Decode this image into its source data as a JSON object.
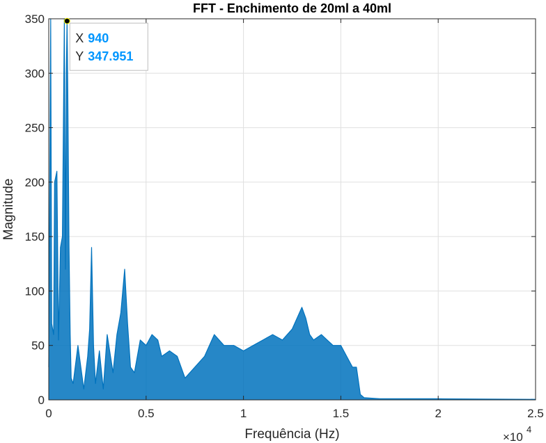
{
  "chart_data": {
    "type": "line",
    "title": "FFT - Enchimento de 20ml a 40ml",
    "xlabel": "Frequência (Hz)",
    "ylabel": "Magnitude",
    "xlim": [
      0,
      25000
    ],
    "ylim": [
      0,
      350
    ],
    "x_ticks": [
      0,
      5000,
      10000,
      15000,
      20000,
      25000
    ],
    "x_tick_labels": [
      "0",
      "0.5",
      "1",
      "1.5",
      "2",
      "2.5"
    ],
    "x_exponent_label": "×10",
    "x_exponent_power": "4",
    "y_ticks": [
      0,
      50,
      100,
      150,
      200,
      250,
      300,
      350
    ],
    "y_tick_labels": [
      "0",
      "50",
      "100",
      "150",
      "200",
      "250",
      "300",
      "350"
    ],
    "grid": true,
    "series": [
      {
        "color": "#0072BD",
        "x": [
          0,
          100,
          150,
          250,
          300,
          420,
          500,
          600,
          700,
          800,
          860,
          900,
          940,
          980,
          1040,
          1100,
          1150,
          1250,
          1500,
          1800,
          2000,
          2100,
          2200,
          2300,
          2400,
          2600,
          2800,
          3000,
          3300,
          3500,
          3700,
          3900,
          4050,
          4200,
          4400,
          4700,
          5000,
          5300,
          5600,
          5800,
          6200,
          6600,
          7000,
          7500,
          8000,
          8500,
          9000,
          9500,
          10000,
          10500,
          11000,
          11500,
          12000,
          12500,
          13000,
          13200,
          13400,
          13600,
          14000,
          14300,
          14600,
          15000,
          15300,
          15600,
          15800,
          16000,
          16200,
          17000,
          20000,
          25000
        ],
        "y": [
          30,
          350,
          70,
          60,
          200,
          210,
          55,
          140,
          150,
          350,
          120,
          300,
          347.951,
          280,
          140,
          60,
          20,
          15,
          50,
          10,
          40,
          65,
          140,
          50,
          15,
          45,
          10,
          60,
          25,
          60,
          80,
          120,
          70,
          30,
          25,
          55,
          50,
          60,
          55,
          40,
          45,
          40,
          20,
          30,
          40,
          60,
          50,
          50,
          45,
          50,
          55,
          60,
          55,
          65,
          85,
          75,
          60,
          55,
          60,
          55,
          50,
          50,
          40,
          30,
          30,
          5,
          2,
          1,
          1,
          0.5
        ]
      }
    ],
    "datatip": {
      "x_label": "X",
      "x_value": "940",
      "y_label": "Y",
      "y_value": "347.951",
      "x": 940,
      "y": 347.951
    }
  },
  "colors": {
    "line": "#0072BD",
    "datatip_value": "#0096FF",
    "grid": "#DFDFDF",
    "axes": "#262626"
  }
}
